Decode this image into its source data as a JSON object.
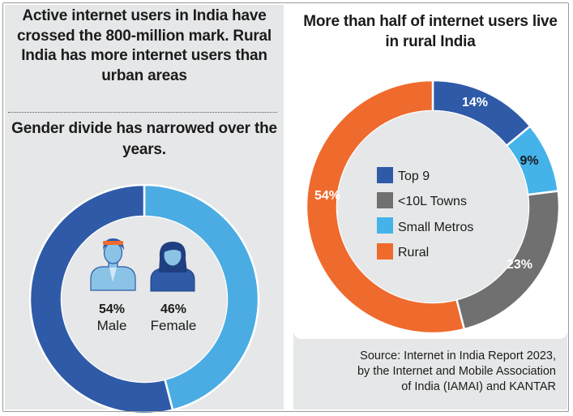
{
  "header": {
    "title": "Active internet users in India have crossed the 800-million mark. Rural India has more internet users than urban areas"
  },
  "gender_panel": {
    "title": "Gender divide has narrowed over the years.",
    "male_icon": "man-icon",
    "female_icon": "woman-icon"
  },
  "location_panel": {
    "title": "More than half of internet users live in rural India"
  },
  "source": {
    "line1": "Source: Internet in India Report 2023,",
    "line2": "by the Internet and Mobile Association",
    "line3": "of India (IAMAI) and KANTAR"
  },
  "colors": {
    "male": "#2f5aa8",
    "female": "#4aace3",
    "top9": "#2f5aa8",
    "towns": "#707070",
    "metros": "#44b3ea",
    "rural": "#ef6a2d",
    "panel_bg": "#e6e7e8"
  },
  "chart_data": [
    {
      "type": "pie",
      "title": "Gender divide has narrowed over the years.",
      "slices": [
        {
          "label": "Male",
          "value": 54,
          "display": "54%"
        },
        {
          "label": "Female",
          "value": 46,
          "display": "46%"
        }
      ]
    },
    {
      "type": "pie",
      "title": "More than half of internet users live in rural India",
      "legend_position": "center",
      "slices": [
        {
          "label": "Top 9",
          "value": 14,
          "display": "14%"
        },
        {
          "label": "Small Metros",
          "value": 9,
          "display": "9%"
        },
        {
          "label": "<10L Towns",
          "value": 23,
          "display": "23%"
        },
        {
          "label": "Rural",
          "value": 54,
          "display": "54%"
        }
      ],
      "legend": [
        "Top 9",
        "<10L Towns",
        "Small Metros",
        "Rural"
      ]
    }
  ]
}
